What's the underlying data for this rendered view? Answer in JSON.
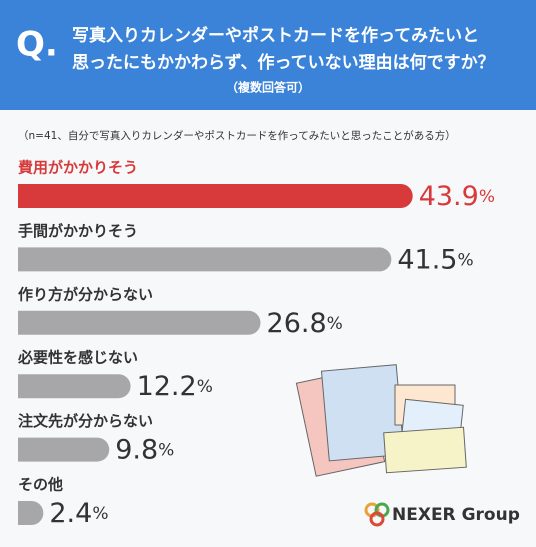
{
  "header": {
    "q": "Q.",
    "title_lines": [
      "写真入りカレンダーやポストカードを作ってみたいと",
      "思ったにもかかわらず、作っていない理由は何ですか？"
    ],
    "subtitle": "（複数回答可）"
  },
  "chart_data": {
    "type": "bar",
    "orientation": "horizontal",
    "note": "（n=41、自分で写真入りカレンダーやポストカードを作ってみたいと思ったことがある方）",
    "categories": [
      "費用がかかりそう",
      "手間がかかりそう",
      "作り方が分からない",
      "必要性を感じない",
      "注文先が分からない",
      "その他"
    ],
    "values": [
      43.9,
      41.5,
      26.8,
      12.2,
      9.8,
      2.4
    ],
    "value_unit": "%",
    "colors": [
      "#d83a3b",
      "#a7a7a9",
      "#a7a7a9",
      "#a7a7a9",
      "#a7a7a9",
      "#a7a7a9"
    ],
    "label_colors": [
      "#d83a3b",
      "#333333",
      "#333333",
      "#333333",
      "#333333",
      "#333333"
    ]
  },
  "logo": "NEXER Group"
}
